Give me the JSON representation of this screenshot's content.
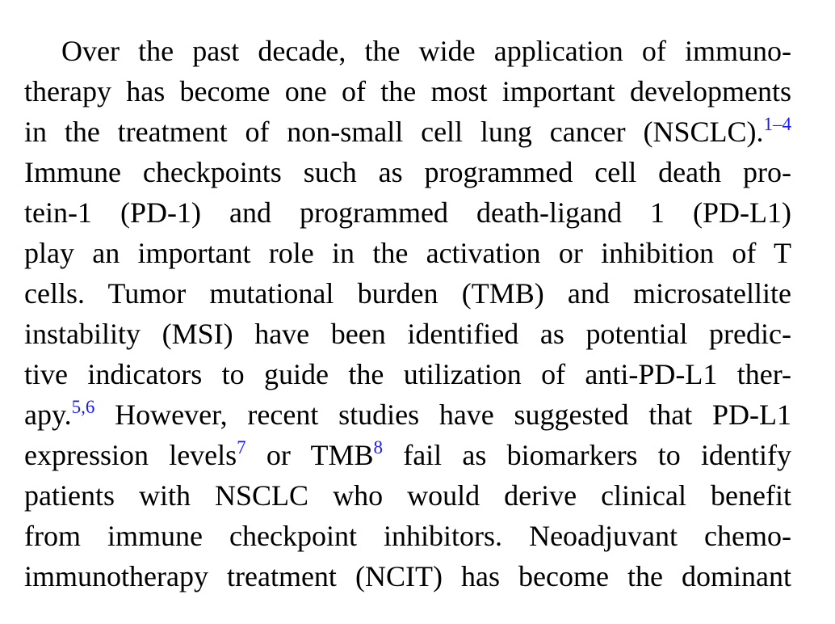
{
  "paragraph": {
    "lines": [
      {
        "text": "Over the past decade, the wide application of immuno-"
      },
      {
        "text": "therapy has become one of the most important developments"
      },
      {
        "before": "in the treatment of non-small cell lung cancer (NSCLC).",
        "cite": "1–4"
      },
      {
        "text": "Immune checkpoints such as programmed cell death pro-"
      },
      {
        "text": "tein-1 (PD-1) and programmed death-ligand 1 (PD-L1)"
      },
      {
        "text": "play an important role in the activation or inhibition of T"
      },
      {
        "text": "cells. Tumor mutational burden (TMB) and microsatellite"
      },
      {
        "text": "instability (MSI) have been identified as potential predic-"
      },
      {
        "text": "tive indicators to guide the utilization of anti-PD-L1 ther-"
      },
      {
        "before": "apy.",
        "cite": "5,6",
        "after": " However, recent studies have suggested that PD-L1"
      },
      {
        "before": "expression levels",
        "cite": "7",
        "middle": " or TMB",
        "cite2": "8",
        "after": " fail as biomarkers to identify"
      },
      {
        "text": "patients with NSCLC who would derive clinical benefit"
      },
      {
        "text": "from immune checkpoint inhibitors. Neoadjuvant chemo-"
      },
      {
        "text": "immunotherapy treatment (NCIT) has become the dominant"
      }
    ]
  },
  "colors": {
    "text": "#000000",
    "citation": "#1a1aff",
    "background": "#ffffff"
  }
}
